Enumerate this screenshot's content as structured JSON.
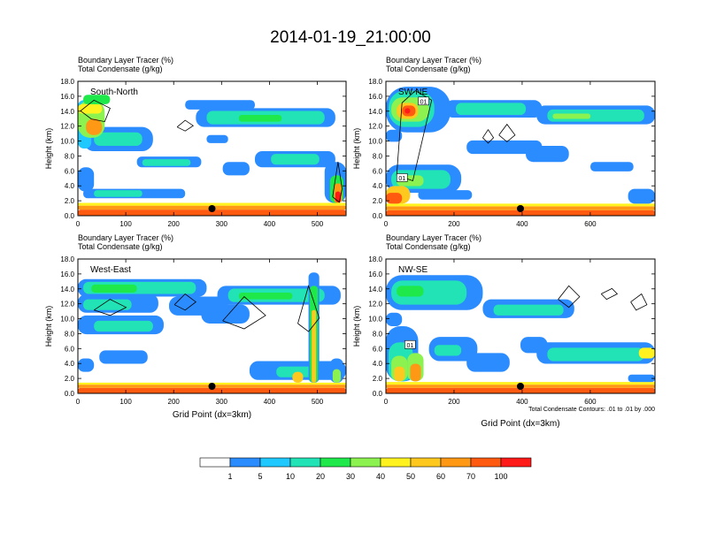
{
  "page": {
    "title": "2014-01-19_21:00:00"
  },
  "chart_data": [
    {
      "type": "heatmap",
      "panel_label": "South-North",
      "title_line1": "Boundary Layer Tracer   (%)",
      "title_line2": "Total Condensate   (g/kg)",
      "ylabel": "Height (km)",
      "xlabel": "",
      "xlim": [
        0,
        560
      ],
      "ylim": [
        0,
        18
      ],
      "x_ticks": [
        0,
        100,
        200,
        300,
        400,
        500
      ],
      "y_ticks": [
        "0.0",
        "2.0",
        "4.0",
        "6.0",
        "8.0",
        "10.0",
        "12.0",
        "14.0",
        "16.0",
        "18.0"
      ],
      "marker_x": 280,
      "footnote": ""
    },
    {
      "type": "heatmap",
      "panel_label": "SW-NE",
      "title_line1": "Boundary Layer Tracer   (%)",
      "title_line2": "Total Condensate   (g/kg)",
      "ylabel": "Height (km)",
      "xlabel": "",
      "xlim": [
        0,
        790
      ],
      "ylim": [
        0,
        18
      ],
      "x_ticks": [
        0,
        200,
        400,
        600
      ],
      "y_ticks": [
        "0.0",
        "2.0",
        "4.0",
        "6.0",
        "8.0",
        "10.0",
        "12.0",
        "14.0",
        "16.0",
        "18.0"
      ],
      "marker_x": 395,
      "contour_labels": [
        "01",
        "01"
      ],
      "footnote": ""
    },
    {
      "type": "heatmap",
      "panel_label": "West-East",
      "title_line1": "Boundary Layer Tracer   (%)",
      "title_line2": "Total Condensate   (g/kg)",
      "ylabel": "Height (km)",
      "xlabel": "Grid Point (dx=3km)",
      "xlim": [
        0,
        560
      ],
      "ylim": [
        0,
        18
      ],
      "x_ticks": [
        0,
        100,
        200,
        300,
        400,
        500
      ],
      "y_ticks": [
        "0.0",
        "2.0",
        "4.0",
        "6.0",
        "8.0",
        "10.0",
        "12.0",
        "14.0",
        "16.0",
        "18.0"
      ],
      "marker_x": 280,
      "footnote": ""
    },
    {
      "type": "heatmap",
      "panel_label": "NW-SE",
      "title_line1": "Boundary Layer Tracer   (%)",
      "title_line2": "Total Condensate   (g/kg)",
      "ylabel": "Height (km)",
      "xlabel": "Grid Point (dx=3km)",
      "xlim": [
        0,
        790
      ],
      "ylim": [
        0,
        18
      ],
      "x_ticks": [
        0,
        200,
        400,
        600
      ],
      "y_ticks": [
        "0.0",
        "2.0",
        "4.0",
        "6.0",
        "8.0",
        "10.0",
        "12.0",
        "14.0",
        "16.0",
        "18.0"
      ],
      "marker_x": 395,
      "contour_labels": [
        "01"
      ],
      "footnote": "Total Condensate Contours: .01 to .01 by .000"
    }
  ],
  "colorbar": {
    "labels": [
      "1",
      "5",
      "10",
      "20",
      "30",
      "40",
      "50",
      "60",
      "70",
      "100"
    ],
    "colors": [
      "#ffffff",
      "#2b8cff",
      "#1fc9ff",
      "#22e3b6",
      "#1fe84a",
      "#8cf250",
      "#fff21f",
      "#ffc81e",
      "#ff9814",
      "#ff5a10",
      "#ff1a1a"
    ]
  }
}
